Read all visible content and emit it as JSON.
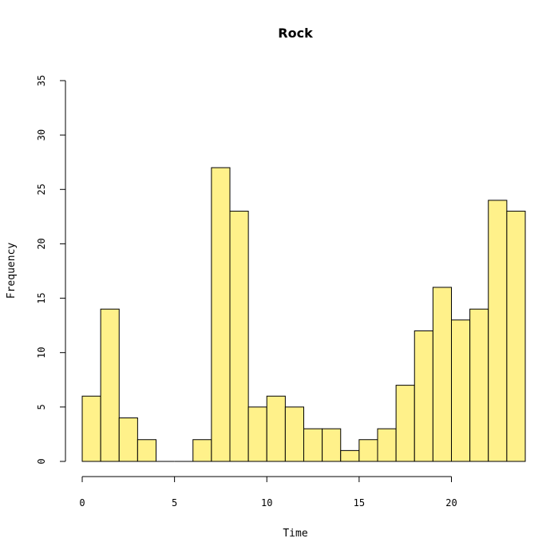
{
  "chart_data": {
    "type": "bar",
    "title": "Rock",
    "xlabel": "Time",
    "ylabel": "Frequency",
    "bin_width": 1,
    "bins": [
      {
        "start": 0,
        "end": 1,
        "value": 6
      },
      {
        "start": 1,
        "end": 2,
        "value": 14
      },
      {
        "start": 2,
        "end": 3,
        "value": 4
      },
      {
        "start": 3,
        "end": 4,
        "value": 2
      },
      {
        "start": 4,
        "end": 5,
        "value": 0
      },
      {
        "start": 5,
        "end": 6,
        "value": 0
      },
      {
        "start": 6,
        "end": 7,
        "value": 2
      },
      {
        "start": 7,
        "end": 8,
        "value": 27
      },
      {
        "start": 8,
        "end": 9,
        "value": 23
      },
      {
        "start": 9,
        "end": 10,
        "value": 5
      },
      {
        "start": 10,
        "end": 11,
        "value": 6
      },
      {
        "start": 11,
        "end": 12,
        "value": 5
      },
      {
        "start": 12,
        "end": 13,
        "value": 3
      },
      {
        "start": 13,
        "end": 14,
        "value": 3
      },
      {
        "start": 14,
        "end": 15,
        "value": 1
      },
      {
        "start": 15,
        "end": 16,
        "value": 2
      },
      {
        "start": 16,
        "end": 17,
        "value": 3
      },
      {
        "start": 17,
        "end": 18,
        "value": 7
      },
      {
        "start": 18,
        "end": 19,
        "value": 12
      },
      {
        "start": 19,
        "end": 20,
        "value": 16
      },
      {
        "start": 20,
        "end": 21,
        "value": 13
      },
      {
        "start": 21,
        "end": 22,
        "value": 14
      },
      {
        "start": 22,
        "end": 23,
        "value": 24
      },
      {
        "start": 23,
        "end": 24,
        "value": 23
      }
    ],
    "xlim": [
      0,
      24
    ],
    "ylim": [
      0,
      35
    ],
    "x_ticks": [
      0,
      5,
      10,
      15,
      20
    ],
    "y_ticks": [
      0,
      5,
      10,
      15,
      20,
      25,
      30,
      35
    ],
    "grid": false,
    "bar_color": "#fff18a",
    "bar_border_color": "#000000"
  }
}
